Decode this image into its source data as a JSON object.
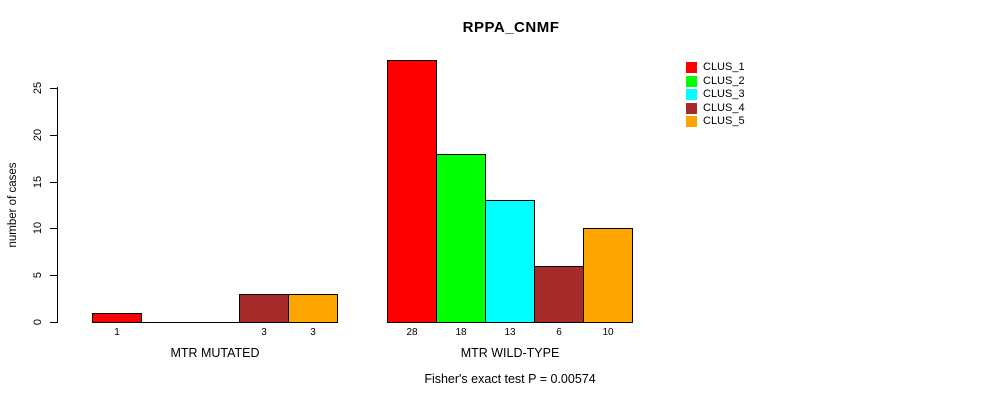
{
  "title": "RPPA_CNMF",
  "chart_data": {
    "type": "bar",
    "title": "RPPA_CNMF",
    "xlabel": "",
    "ylabel": "number of cases",
    "ylim": [
      0,
      28
    ],
    "yticks": [
      0,
      5,
      10,
      15,
      20,
      25
    ],
    "grid": false,
    "legend_position": "top-right",
    "series_names": [
      "CLUS_1",
      "CLUS_2",
      "CLUS_3",
      "CLUS_4",
      "CLUS_5"
    ],
    "series_colors": [
      "#FF0000",
      "#00FF00",
      "#00FFFF",
      "#A52A2A",
      "#FFA500"
    ],
    "groups": [
      {
        "label": "MTR MUTATED",
        "values": [
          1,
          0,
          0,
          3,
          3
        ],
        "bar_labels": [
          "1",
          "",
          "",
          "3",
          "3"
        ]
      },
      {
        "label": "MTR WILD-TYPE",
        "values": [
          28,
          18,
          13,
          6,
          10
        ],
        "bar_labels": [
          "28",
          "18",
          "13",
          "6",
          "10"
        ]
      }
    ],
    "legend": {
      "entries": [
        {
          "label": "CLUS_1",
          "color": "#FF0000"
        },
        {
          "label": "CLUS_2",
          "color": "#00FF00"
        },
        {
          "label": "CLUS_3",
          "color": "#00FFFF"
        },
        {
          "label": "CLUS_4",
          "color": "#A52A2A"
        },
        {
          "label": "CLUS_5",
          "color": "#FFA500"
        }
      ]
    },
    "footnote": "Fisher's exact test P = 0.00574"
  }
}
